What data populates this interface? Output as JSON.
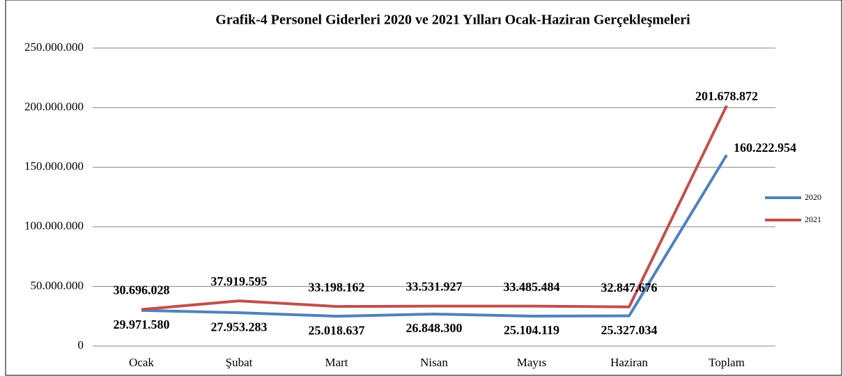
{
  "chart_data": {
    "type": "line",
    "title": "Grafik-4  Personel Giderleri 2020 ve 2021 Yılları Ocak-Haziran Gerçekleşmeleri",
    "categories": [
      "Ocak",
      "Şubat",
      "Mart",
      "Nisan",
      "Mayıs",
      "Haziran",
      "Toplam"
    ],
    "series": [
      {
        "name": "2020",
        "color": "#4f81bd",
        "label_color": "#333399",
        "values": [
          29971580,
          27953283,
          25018637,
          26848300,
          25104119,
          25327034,
          160222954
        ],
        "value_labels": [
          "29.971.580",
          "27.953.283",
          "25.018.637",
          "26.848.300",
          "25.104.119",
          "25.327.034",
          "160.222.954"
        ]
      },
      {
        "name": "2021",
        "color": "#c0504d",
        "label_color": "#ff0000",
        "values": [
          30696028,
          37919595,
          33198162,
          33531927,
          33485484,
          32847676,
          201678872
        ],
        "value_labels": [
          "30.696.028",
          "37.919.595",
          "33.198.162",
          "33.531.927",
          "33.485.484",
          "32.847.676",
          "201.678.872"
        ]
      }
    ],
    "ylim": [
      0,
      250000000
    ],
    "yticks": [
      0,
      {
        "value": 50000000,
        "label": "50.000.000"
      },
      {
        "value": 100000000,
        "label": "100.000.000"
      },
      {
        "value": 150000000,
        "label": "150.000.000"
      },
      {
        "value": 200000000,
        "label": "200.000.000"
      },
      {
        "value": 250000000,
        "label": "250.000.000"
      }
    ],
    "grid": true,
    "legend": "right"
  }
}
